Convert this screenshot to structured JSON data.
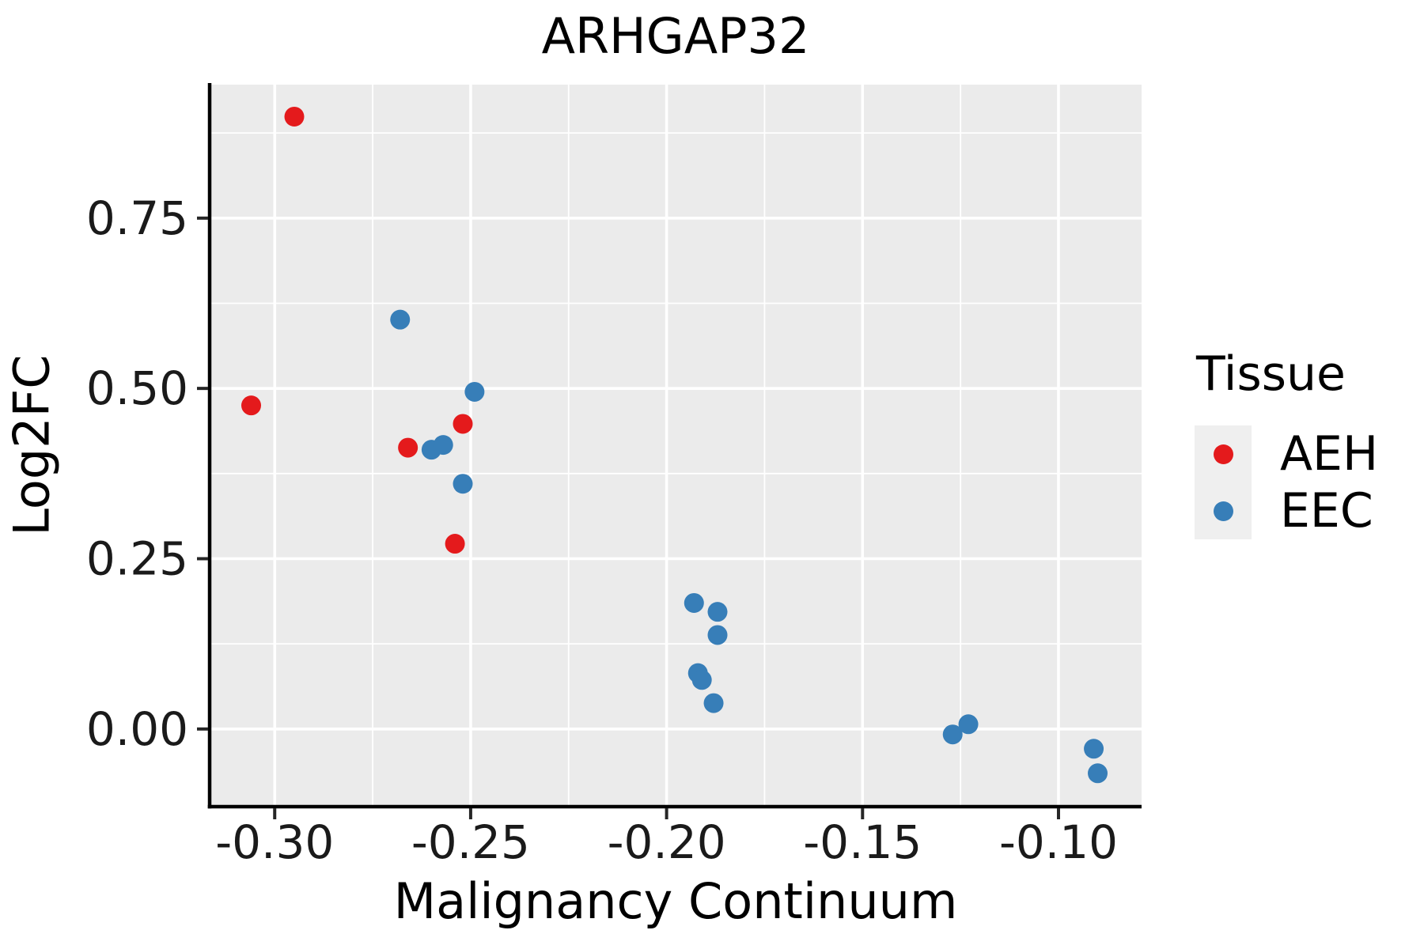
{
  "chart_data": {
    "type": "scatter",
    "title": "ARHGAP32",
    "xlabel": "Malignancy Continuum",
    "ylabel": "Log2FC",
    "xlim": [
      -0.3166,
      -0.0788
    ],
    "ylim": [
      -0.114,
      0.946
    ],
    "x_ticks": [
      -0.3,
      -0.25,
      -0.2,
      -0.15,
      -0.1
    ],
    "x_tick_labels": [
      "-0.30",
      "-0.25",
      "-0.20",
      "-0.15",
      "-0.10"
    ],
    "x_minor_ticks": [
      -0.275,
      -0.225,
      -0.175,
      -0.125
    ],
    "y_ticks": [
      0.0,
      0.25,
      0.5,
      0.75
    ],
    "y_tick_labels": [
      "0.00",
      "0.25",
      "0.50",
      "0.75"
    ],
    "y_minor_ticks": [
      0.125,
      0.375,
      0.625,
      0.875
    ],
    "grid": true,
    "legend_title": "Tissue",
    "legend_position": "right",
    "series": [
      {
        "name": "AEH",
        "color": "#E41A1C",
        "points": [
          [
            -0.295,
            0.899
          ],
          [
            -0.306,
            0.475
          ],
          [
            -0.266,
            0.413
          ],
          [
            -0.252,
            0.448
          ],
          [
            -0.254,
            0.272
          ]
        ]
      },
      {
        "name": "EEC",
        "color": "#377EB8",
        "points": [
          [
            -0.268,
            0.601
          ],
          [
            -0.249,
            0.495
          ],
          [
            -0.26,
            0.41
          ],
          [
            -0.257,
            0.417
          ],
          [
            -0.252,
            0.36
          ],
          [
            -0.193,
            0.185
          ],
          [
            -0.187,
            0.172
          ],
          [
            -0.187,
            0.138
          ],
          [
            -0.192,
            0.082
          ],
          [
            -0.191,
            0.072
          ],
          [
            -0.188,
            0.038
          ],
          [
            -0.127,
            -0.008
          ],
          [
            -0.123,
            0.007
          ],
          [
            -0.091,
            -0.029
          ],
          [
            -0.09,
            -0.065
          ]
        ]
      }
    ]
  },
  "legend": {
    "title": "Tissue",
    "entries": [
      {
        "label": "AEH",
        "color": "#E41A1C"
      },
      {
        "label": "EEC",
        "color": "#377EB8"
      }
    ]
  },
  "colors": {
    "panel_bg": "#EBEBEB",
    "grid": "#FFFFFF",
    "axis_line": "#000000",
    "tick": "#262626",
    "tick_label": "#1A1A1A",
    "legend_key_bg": "#EFEFEF",
    "aeh": "#E41A1C",
    "eec": "#377EB8"
  }
}
